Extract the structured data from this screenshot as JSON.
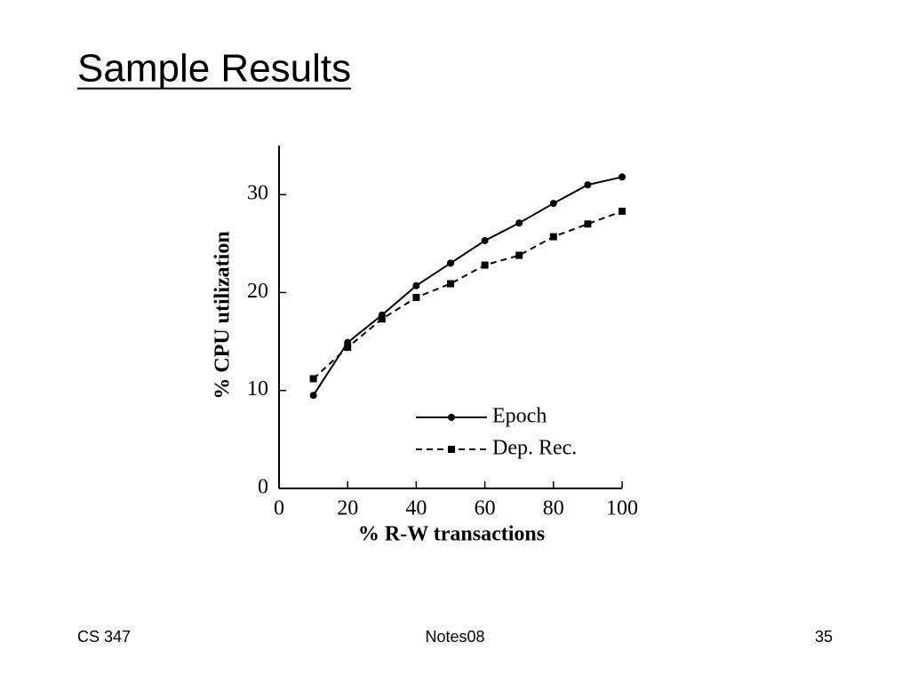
{
  "slide": {
    "title": "Sample Results",
    "footer_left": "CS 347",
    "footer_center": "Notes08",
    "footer_right": "35"
  },
  "chart_data": {
    "type": "line",
    "x_label": "%  R-W transactions",
    "y_label": "%  CPU utilization",
    "x": [
      10,
      20,
      30,
      40,
      50,
      60,
      70,
      80,
      90,
      100
    ],
    "series": [
      {
        "name": "Epoch",
        "color": "#000000",
        "dash": "solid",
        "marker": "circle",
        "values": [
          9.5,
          14.9,
          17.7,
          20.7,
          23.0,
          25.3,
          27.1,
          29.1,
          31.0,
          31.8
        ]
      },
      {
        "name": "Dep. Rec.",
        "color": "#000000",
        "dash": "dashed",
        "marker": "square",
        "values": [
          11.2,
          14.4,
          17.3,
          19.5,
          20.9,
          22.8,
          23.8,
          25.7,
          27.0,
          28.3
        ]
      }
    ],
    "xlim": [
      0,
      100
    ],
    "xticks": [
      0,
      20,
      40,
      60,
      80,
      100
    ],
    "ylim": [
      0,
      35
    ],
    "yticks": [
      0,
      10,
      20,
      30
    ],
    "grid": false,
    "legend": "lower-right"
  }
}
